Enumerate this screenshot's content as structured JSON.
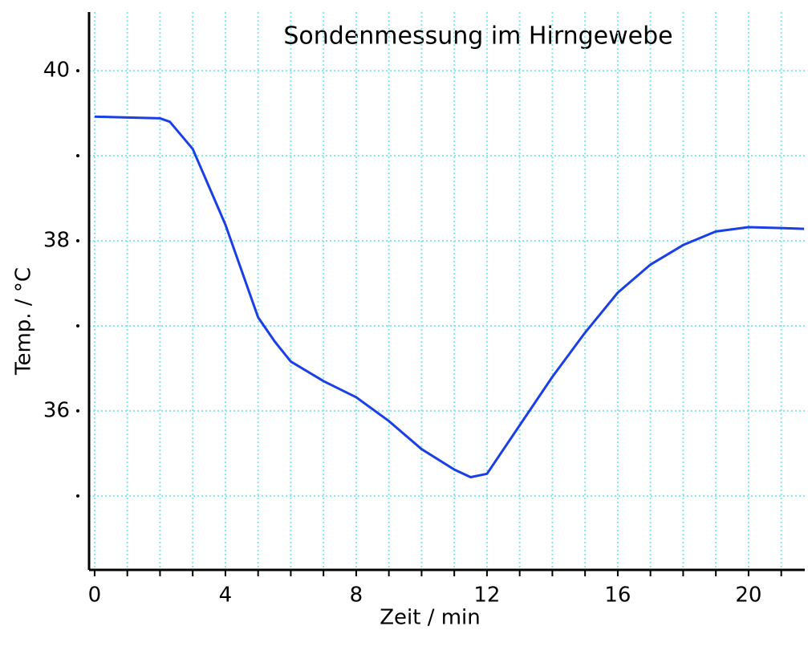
{
  "chart_data": {
    "type": "line",
    "title": "Sondenmessung im Hirngewebe",
    "xlabel": "Zeit / min",
    "ylabel": "Temp. / °C",
    "x": [
      0,
      1,
      2,
      2.3,
      3,
      4,
      5,
      5.5,
      6,
      7,
      8,
      9,
      10,
      11,
      11.5,
      12,
      13,
      14,
      15,
      16,
      17,
      18,
      19,
      20,
      21,
      21.7
    ],
    "series": [
      {
        "color": "#1a3fe6",
        "values": [
          39.46,
          39.45,
          39.44,
          39.4,
          39.08,
          38.19,
          37.1,
          36.82,
          36.58,
          36.35,
          36.16,
          35.88,
          35.55,
          35.31,
          35.22,
          35.26,
          35.83,
          36.4,
          36.92,
          37.39,
          37.72,
          37.95,
          38.11,
          38.16,
          38.15,
          38.14
        ]
      }
    ],
    "xlim": [
      -0.17,
      21.72
    ],
    "ylim": [
      34.13,
      40.69
    ],
    "xticks": [
      0,
      4,
      8,
      12,
      16,
      20
    ],
    "yticks": [
      36,
      38,
      40
    ],
    "xgrid": [
      0,
      1,
      2,
      3,
      4,
      5,
      6,
      7,
      8,
      9,
      10,
      11,
      12,
      13,
      14,
      15,
      16,
      17,
      18,
      19,
      20,
      21
    ],
    "ygrid": [
      35,
      36,
      37,
      38,
      39,
      40
    ],
    "grid": true
  }
}
